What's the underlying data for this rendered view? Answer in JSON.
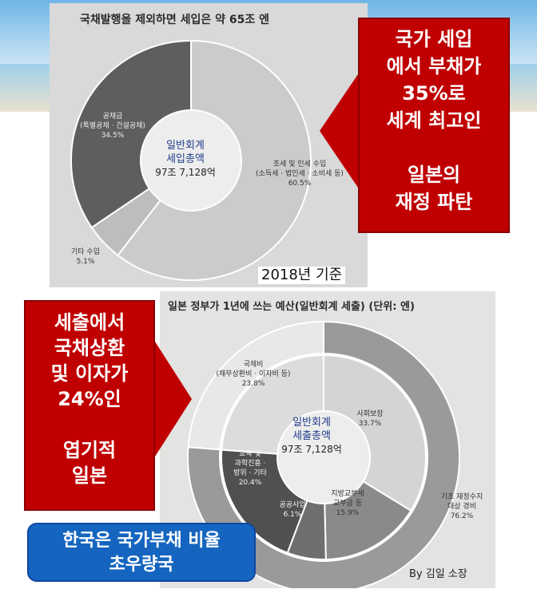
{
  "chart_data": [
    {
      "type": "pie",
      "title": "국채발행을 제외하면 세입은 약 65조 엔",
      "center_text": [
        "일반회계",
        "세입총액",
        "97조 7,128억"
      ],
      "slices": [
        {
          "label_lines": [
            "조세 및 인세 수입",
            "(소득세 · 법인세 · 소비세 등)"
          ],
          "pct_text": "60.5%",
          "value": 60.5
        },
        {
          "label_lines": [
            "기타 수입"
          ],
          "pct_text": "5.1%",
          "value": 5.1
        },
        {
          "label_lines": [
            "공채금",
            "(특별공채 · 건설공채)"
          ],
          "pct_text": "34.5%",
          "value": 34.5
        }
      ],
      "colors": [
        "#cbcbcb",
        "#bdbdbd",
        "#5e5e5e"
      ]
    },
    {
      "type": "pie",
      "title": "일본 정부가 1년에 쓰는 예산(일반회계 세출) (단위: 엔)",
      "center_text": [
        "일반회계",
        "세출총액",
        "97조 7,128억"
      ],
      "inner_slices": [
        {
          "label_lines": [
            "사회보장"
          ],
          "pct_text": "33.7%",
          "value": 33.7
        },
        {
          "label_lines": [
            "지방교부세",
            "교부금 등"
          ],
          "pct_text": "15.9%",
          "value": 15.9
        },
        {
          "label_lines": [
            "공공사업"
          ],
          "pct_text": "6.1%",
          "value": 6.1
        },
        {
          "label_lines": [
            "교육 및",
            "과학진흥 ·",
            "방위 · 기타"
          ],
          "pct_text": "20.4%",
          "value": 20.4
        },
        {
          "label_lines": [
            "국채비",
            "(채무상환비 · 이자비 등)"
          ],
          "pct_text": "23.8%",
          "value": 23.8
        }
      ],
      "outer_slices": [
        {
          "label_lines": [
            "기초 재정수지",
            "대상 경비"
          ],
          "pct_text": "76.2%",
          "value": 76.2
        },
        {
          "label_lines": [],
          "pct_text": "",
          "value": 23.8
        }
      ],
      "colors": [
        "#d4d4d4",
        "#8a8a8a",
        "#6f6f6f",
        "#505050",
        "#dcdcdc"
      ]
    }
  ],
  "notes": {
    "year": "2018년 기준",
    "callout1": [
      "국가 세입",
      "에서 부채가",
      "35%로",
      "세계 최고인",
      "",
      "일본의",
      "재정 파탄"
    ],
    "callout2": [
      "세출에서",
      "국채상환",
      "및 이자가",
      "24%인",
      "",
      "엽기적",
      "일본"
    ],
    "korea": [
      "한국은 국가부채 비율",
      "초우량국"
    ],
    "byline": "By 김일 소장"
  },
  "colors": {
    "callout": "#c00000",
    "korea_box": "#1565c0"
  }
}
